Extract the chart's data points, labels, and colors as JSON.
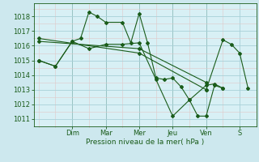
{
  "background_color": "#cde8ee",
  "plot_bg_color": "#d8f0f5",
  "grid_major_color": "#a8d0d8",
  "grid_minor_color": "#e0c8c8",
  "line_color": "#1a5c1a",
  "text_color": "#1a5c1a",
  "xlabel": "Pression niveau de la mer( hPa )",
  "ylim": [
    1010.5,
    1018.9
  ],
  "yticks": [
    1011,
    1012,
    1013,
    1014,
    1015,
    1016,
    1017,
    1018
  ],
  "day_labels": [
    "Dim",
    "Mar",
    "Mer",
    "Jeu",
    "Ven",
    "S"
  ],
  "day_positions": [
    2.0,
    4.0,
    6.0,
    8.0,
    10.0,
    12.0
  ],
  "xlim": [
    -0.3,
    13.0
  ],
  "series": [
    {
      "x": [
        0,
        1,
        2,
        2.5,
        3,
        3.5,
        4,
        5,
        5.5,
        6,
        6.5,
        7,
        7.5,
        8,
        8.5,
        9,
        9.5,
        10,
        10.5,
        11
      ],
      "y": [
        1015.0,
        1014.6,
        1016.3,
        1016.5,
        1018.3,
        1018.0,
        1017.6,
        1017.6,
        1016.2,
        1018.2,
        1016.2,
        1013.8,
        1013.7,
        1013.8,
        1013.2,
        1012.3,
        1011.2,
        1011.2,
        1013.3,
        1013.1
      ]
    },
    {
      "x": [
        0,
        1,
        2,
        3,
        4,
        5,
        6,
        7,
        8,
        9,
        10,
        10.5,
        11
      ],
      "y": [
        1015.0,
        1014.6,
        1016.3,
        1015.8,
        1016.1,
        1016.1,
        1016.2,
        1013.7,
        1011.2,
        1012.3,
        1013.3,
        1013.4,
        1013.1
      ]
    },
    {
      "x": [
        0,
        6,
        10
      ],
      "y": [
        1016.3,
        1015.8,
        1013.5
      ]
    },
    {
      "x": [
        0,
        6,
        10
      ],
      "y": [
        1016.5,
        1015.5,
        1013.0
      ]
    },
    {
      "x": [
        10,
        11,
        11.5,
        12,
        12.5
      ],
      "y": [
        1013.0,
        1016.4,
        1016.1,
        1015.5,
        1013.1
      ]
    }
  ]
}
